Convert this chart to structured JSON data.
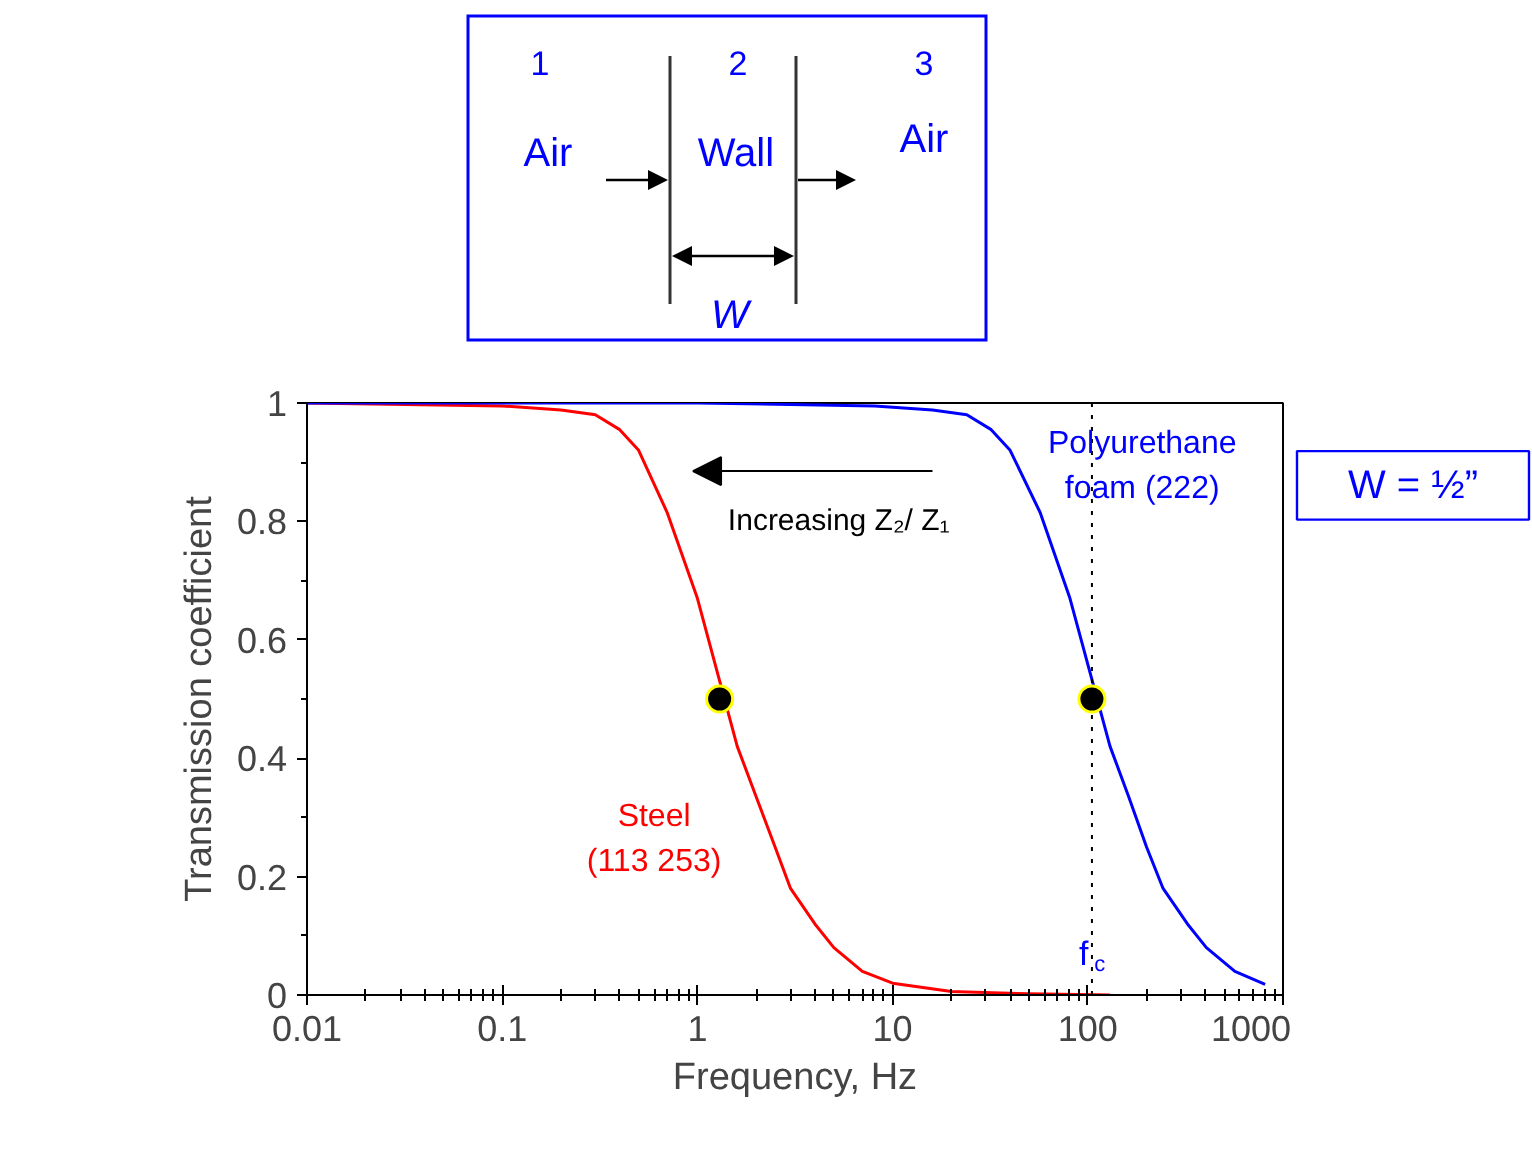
{
  "chart_data": {
    "type": "line",
    "xlabel": "Frequency, Hz",
    "ylabel": "Transmission coefficient",
    "x": [
      0.01,
      0.1,
      0.2,
      0.3,
      0.4,
      0.5,
      0.7,
      1,
      1.6,
      2,
      2.5,
      3,
      4,
      5,
      7,
      10,
      20,
      50,
      130
    ],
    "series": [
      {
        "name": "Steel (113 253)",
        "color": "#ff0000",
        "values": [
          1,
          0.995,
          0.988,
          0.98,
          0.955,
          0.92,
          0.815,
          0.67,
          0.42,
          0.335,
          0.25,
          0.18,
          0.12,
          0.08,
          0.04,
          0.02,
          0.006,
          0.002,
          0
        ]
      },
      {
        "name": "Polyurethane foam (222)",
        "color": "#0000ff",
        "x": [
          0.01,
          1,
          8.1,
          16,
          24,
          32,
          40,
          57,
          81,
          130,
          162,
          200,
          243,
          324,
          405,
          567,
          810
        ],
        "values": [
          1,
          1,
          0.995,
          0.988,
          0.98,
          0.955,
          0.92,
          0.815,
          0.67,
          0.42,
          0.335,
          0.25,
          0.18,
          0.12,
          0.08,
          0.04,
          0.018
        ]
      },
      {
        "type": "scatter",
        "color": "#000000",
        "marker": "circle",
        "x": [
          1.3,
          105
        ],
        "values": [
          0.5,
          0.5
        ]
      }
    ],
    "log": "x",
    "xlim": [
      0.01,
      1000
    ],
    "xticks": [
      0.01,
      0.1,
      1,
      10,
      100,
      1000
    ],
    "ylim": [
      0,
      1
    ],
    "yticks": [
      {
        "value": 0,
        "label": "0"
      },
      0.2,
      0.4,
      0.6,
      0.8,
      {
        "value": 1,
        "label": "1"
      }
    ],
    "grid": false,
    "marker": "none",
    "line_style": "solid",
    "ref_lines": [
      {
        "axis": "x",
        "value": 105,
        "label": "f$_{c}$",
        "color": "#000000",
        "line_style": "dotted"
      }
    ],
    "annotations": [
      "1",
      "2",
      "3",
      "Air",
      "Wall",
      "Air",
      "W",
      "W = ½”",
      "Increasing Z₂/ Z₁"
    ]
  }
}
